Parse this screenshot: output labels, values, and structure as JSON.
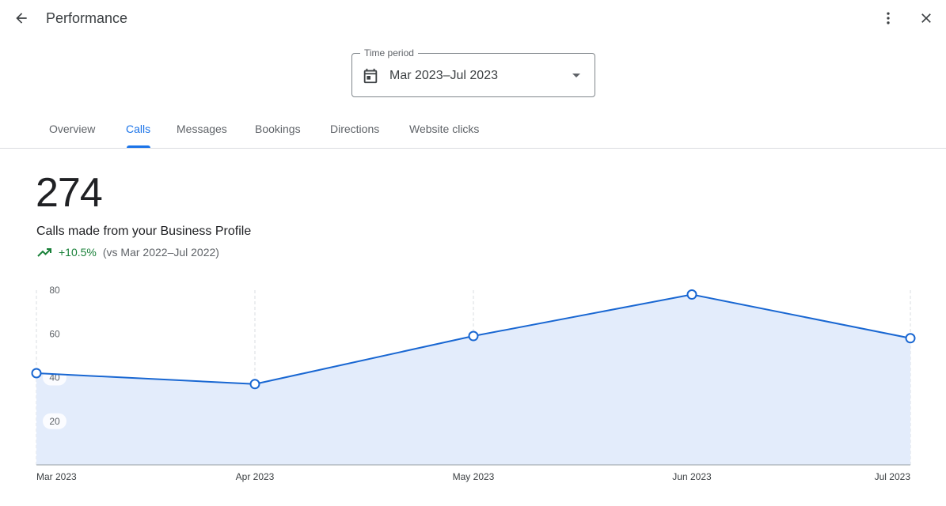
{
  "header": {
    "title": "Performance",
    "back_icon": "arrow-back-icon",
    "more_icon": "more-vert-icon",
    "close_icon": "close-icon"
  },
  "period": {
    "label": "Time period",
    "value": "Mar 2023–Jul 2023",
    "icon": "calendar-icon"
  },
  "tabs": [
    {
      "label": "Overview",
      "active": false
    },
    {
      "label": "Calls",
      "active": true
    },
    {
      "label": "Messages",
      "active": false
    },
    {
      "label": "Bookings",
      "active": false
    },
    {
      "label": "Directions",
      "active": false
    },
    {
      "label": "Website clicks",
      "active": false
    }
  ],
  "metric": {
    "value": "274",
    "caption": "Calls made from your Business Profile",
    "change": "+10.5%",
    "comparison": "(vs Mar 2022–Jul 2022)",
    "trend_icon": "trending-up-icon"
  },
  "colors": {
    "accent": "#1a73e8",
    "line": "#1967d2",
    "fill": "#e3ecfb",
    "positive": "#188038"
  },
  "chart_data": {
    "type": "area",
    "categories": [
      "Mar 2023",
      "Apr 2023",
      "May 2023",
      "Jun 2023",
      "Jul 2023"
    ],
    "values": [
      42,
      37,
      59,
      78,
      58
    ],
    "ylim": [
      0,
      80
    ],
    "yticks": [
      20,
      40,
      60,
      80
    ],
    "grid": "vertical dashed",
    "legend": "none"
  }
}
